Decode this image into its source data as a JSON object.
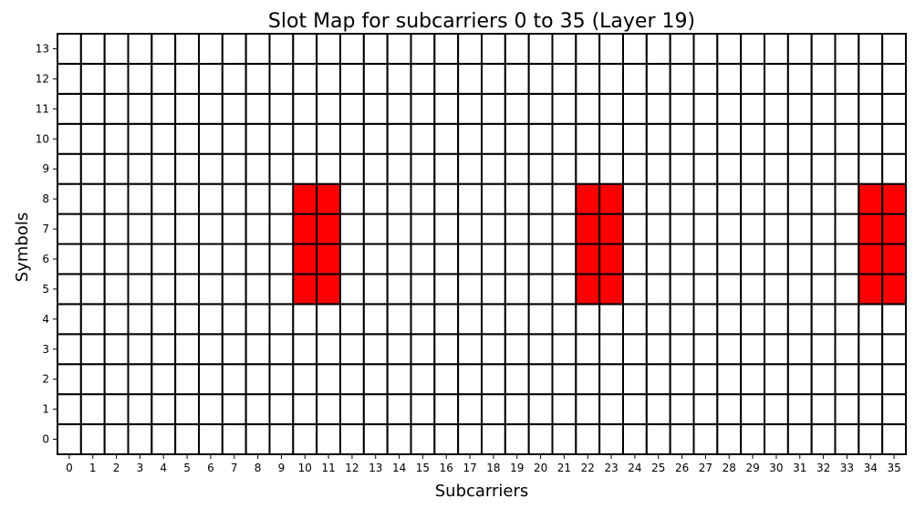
{
  "chart_data": {
    "type": "heatmap",
    "title": "Slot Map for subcarriers 0 to 35 (Layer 19)",
    "xlabel": "Subcarriers",
    "ylabel": "Symbols",
    "x_ticks": [
      "0",
      "1",
      "2",
      "3",
      "4",
      "5",
      "6",
      "7",
      "8",
      "9",
      "10",
      "11",
      "12",
      "13",
      "14",
      "15",
      "16",
      "17",
      "18",
      "19",
      "20",
      "21",
      "22",
      "23",
      "24",
      "25",
      "26",
      "27",
      "28",
      "29",
      "30",
      "31",
      "32",
      "33",
      "34",
      "35"
    ],
    "y_ticks": [
      "0",
      "1",
      "2",
      "3",
      "4",
      "5",
      "6",
      "7",
      "8",
      "9",
      "10",
      "11",
      "12",
      "13"
    ],
    "colors": {
      "empty": "#ffffff",
      "filled": "#ff0000",
      "grid": "#000000"
    },
    "filled_cells": [
      {
        "subcarrier": 10,
        "symbol": 5
      },
      {
        "subcarrier": 10,
        "symbol": 6
      },
      {
        "subcarrier": 10,
        "symbol": 7
      },
      {
        "subcarrier": 10,
        "symbol": 8
      },
      {
        "subcarrier": 11,
        "symbol": 5
      },
      {
        "subcarrier": 11,
        "symbol": 6
      },
      {
        "subcarrier": 11,
        "symbol": 7
      },
      {
        "subcarrier": 11,
        "symbol": 8
      },
      {
        "subcarrier": 22,
        "symbol": 5
      },
      {
        "subcarrier": 22,
        "symbol": 6
      },
      {
        "subcarrier": 22,
        "symbol": 7
      },
      {
        "subcarrier": 22,
        "symbol": 8
      },
      {
        "subcarrier": 23,
        "symbol": 5
      },
      {
        "subcarrier": 23,
        "symbol": 6
      },
      {
        "subcarrier": 23,
        "symbol": 7
      },
      {
        "subcarrier": 23,
        "symbol": 8
      },
      {
        "subcarrier": 34,
        "symbol": 5
      },
      {
        "subcarrier": 34,
        "symbol": 6
      },
      {
        "subcarrier": 34,
        "symbol": 7
      },
      {
        "subcarrier": 34,
        "symbol": 8
      },
      {
        "subcarrier": 35,
        "symbol": 5
      },
      {
        "subcarrier": 35,
        "symbol": 6
      },
      {
        "subcarrier": 35,
        "symbol": 7
      },
      {
        "subcarrier": 35,
        "symbol": 8
      }
    ]
  }
}
